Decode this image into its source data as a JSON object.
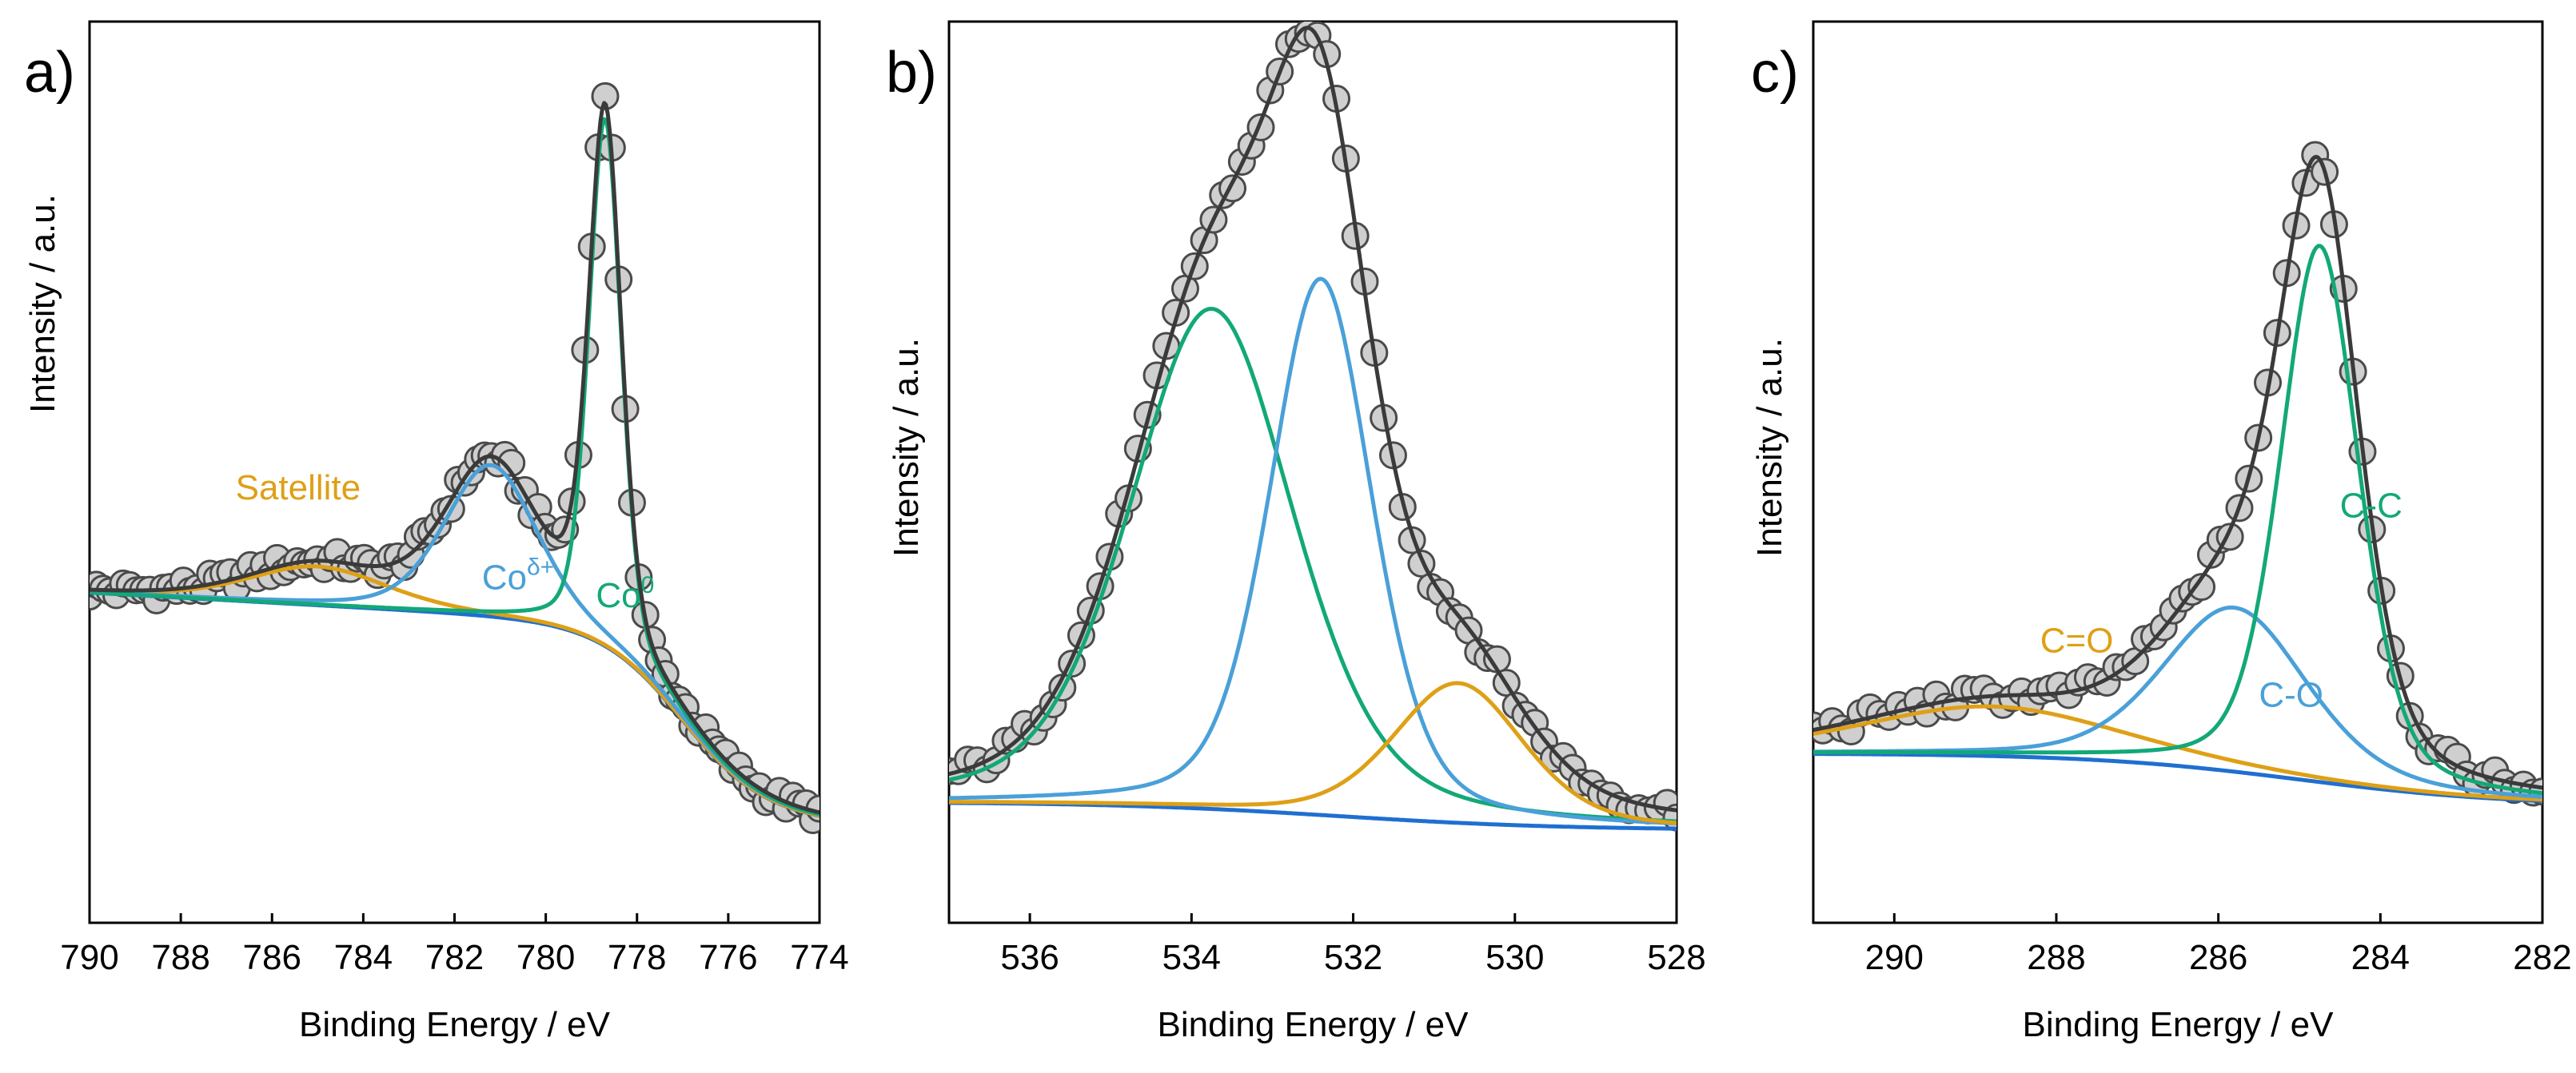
{
  "colors": {
    "envelope": "#3a3a3a",
    "blue": "#4aa0d8",
    "green": "#13a878",
    "orange": "#dea016",
    "background": "#1f6fd0",
    "marker_fill": "#cfcfcf",
    "marker_edge": "#4a4a4a"
  },
  "chart_data": [
    {
      "type": "line",
      "panel": "a)",
      "xlabel": "Binding Energy / eV",
      "ylabel": "Intensity / a.u.",
      "xlim": [
        790,
        774
      ],
      "ylim": [
        0,
        1
      ],
      "xticks": [
        790,
        788,
        786,
        784,
        782,
        780,
        778,
        776,
        774
      ],
      "xtick_labels": [
        "790",
        "788",
        "786",
        "784",
        "782",
        "780",
        "778",
        "776",
        "774"
      ],
      "background": {
        "kind": "shirley",
        "start": 0.33,
        "end": 0.12,
        "center": 777.0,
        "width": 0.9,
        "slope": 0.0028
      },
      "components": [
        {
          "name": "Satellite",
          "color": "#dea016",
          "center": 785.0,
          "height": 0.043,
          "fwhm": 3.6
        },
        {
          "name": "Coδ+",
          "color": "#4aa0d8",
          "center": 781.2,
          "height": 0.168,
          "fwhm": 2.4
        },
        {
          "name": "Co0",
          "color": "#13a878",
          "center": 778.7,
          "height": 0.585,
          "fwhm": 0.85
        }
      ],
      "labels": [
        {
          "text": "Satellite",
          "color": "#dea016",
          "x": 786.8,
          "y": 0.47
        },
        {
          "base": "Co",
          "sup": "δ+",
          "color": "#4aa0d8",
          "x": 781.4,
          "y": 0.37
        },
        {
          "base": "Co",
          "sup": "0",
          "color": "#13a878",
          "x": 778.9,
          "y": 0.35
        }
      ],
      "data_points": {
        "start": 790.0,
        "end": 774.0,
        "count": 110,
        "noise": 0.012
      }
    },
    {
      "type": "line",
      "panel": "b)",
      "xlabel": "Binding Energy / eV",
      "ylabel": "Intensity / a.u.",
      "xlim": [
        537,
        528
      ],
      "ylim": [
        0,
        1
      ],
      "xticks": [
        536,
        534,
        532,
        530,
        528
      ],
      "xtick_labels": [
        "536",
        "534",
        "532",
        "530",
        "528"
      ],
      "background": {
        "kind": "shirley",
        "start": 0.134,
        "end": 0.103,
        "center": 532.2,
        "width": 1.4,
        "slope": 0.0
      },
      "components": [
        {
          "name": "green",
          "color": "#13a878",
          "center": 533.75,
          "height": 0.555,
          "fwhm": 2.4
        },
        {
          "name": "blue",
          "color": "#4aa0d8",
          "center": 532.4,
          "height": 0.595,
          "fwhm": 1.5
        },
        {
          "name": "orange",
          "color": "#dea016",
          "center": 530.7,
          "height": 0.155,
          "fwhm": 1.9
        }
      ],
      "labels": [],
      "data_points": {
        "start": 537.0,
        "end": 528.0,
        "count": 78,
        "noise": 0.012
      }
    },
    {
      "type": "line",
      "panel": "c)",
      "xlabel": "Binding Energy / eV",
      "ylabel": "Intensity / a.u.",
      "xlim": [
        291,
        282
      ],
      "ylim": [
        0,
        1
      ],
      "xticks": [
        290,
        288,
        286,
        284,
        282
      ],
      "xtick_labels": [
        "290",
        "288",
        "286",
        "284",
        "282"
      ],
      "background": {
        "kind": "shirley",
        "start": 0.188,
        "end": 0.13,
        "center": 285.0,
        "width": 1.3,
        "slope": 0.0
      },
      "components": [
        {
          "name": "C=O",
          "color": "#dea016",
          "center": 288.8,
          "height": 0.055,
          "fwhm": 3.8
        },
        {
          "name": "C-O",
          "color": "#4aa0d8",
          "center": 285.8,
          "height": 0.182,
          "fwhm": 2.1
        },
        {
          "name": "C-C",
          "color": "#13a878",
          "center": 284.75,
          "height": 0.595,
          "fwhm": 1.15
        }
      ],
      "labels": [
        {
          "text": "C=O",
          "color": "#dea016",
          "x": 288.2,
          "y": 0.3
        },
        {
          "text": "C-O",
          "color": "#4aa0d8",
          "x": 285.5,
          "y": 0.24
        },
        {
          "text": "C-C",
          "color": "#13a878",
          "x": 284.5,
          "y": 0.45
        }
      ],
      "data_points": {
        "start": 291.0,
        "end": 282.0,
        "count": 78,
        "noise": 0.012
      }
    }
  ]
}
